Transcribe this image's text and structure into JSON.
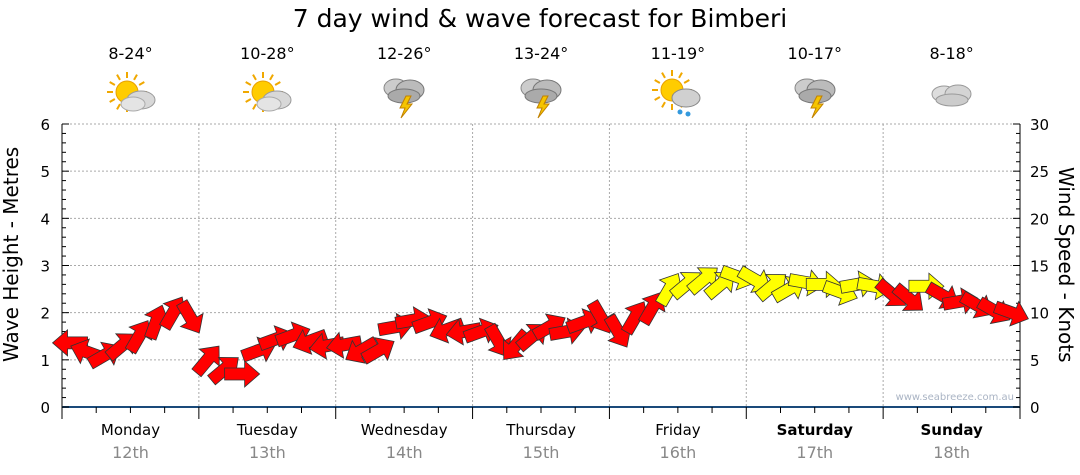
{
  "title": "7 day wind & wave forecast for Bimberi",
  "days": [
    {
      "name": "Monday",
      "date": "12th",
      "temp": "8-24°",
      "icon": "sun-cloud",
      "bold": false
    },
    {
      "name": "Tuesday",
      "date": "13th",
      "temp": "10-28°",
      "icon": "sun-cloud",
      "bold": false
    },
    {
      "name": "Wednesday",
      "date": "14th",
      "temp": "12-26°",
      "icon": "storm",
      "bold": false
    },
    {
      "name": "Thursday",
      "date": "15th",
      "temp": "13-24°",
      "icon": "storm",
      "bold": false
    },
    {
      "name": "Friday",
      "date": "16th",
      "temp": "11-19°",
      "icon": "sun-cloud-rain",
      "bold": false
    },
    {
      "name": "Saturday",
      "date": "17th",
      "temp": "10-17°",
      "icon": "storm",
      "bold": true
    },
    {
      "name": "Sunday",
      "date": "18th",
      "temp": "8-18°",
      "icon": "cloud",
      "bold": true
    }
  ],
  "watermark": "www.seabreeze.com.au",
  "colors": {
    "low": "#ff0000",
    "high": "#ffff00"
  },
  "chart_data": {
    "type": "scatter",
    "title": "7 day wind & wave forecast for Bimberi",
    "ylabel": "Wave Height - Metres",
    "y2label": "Wind Speed - Knots",
    "ylim": [
      0,
      6
    ],
    "y2lim": [
      0,
      30
    ],
    "yticks": [
      "0",
      "1",
      "2",
      "3",
      "4",
      "5",
      "6"
    ],
    "y2ticks": [
      "0",
      "5",
      "10",
      "15",
      "20",
      "25",
      "30"
    ],
    "grid": true,
    "x_hours_step": 3,
    "wind": [
      [
        6.8,
        180,
        "r"
      ],
      [
        5.8,
        200,
        "r"
      ],
      [
        5.5,
        -30,
        "r"
      ],
      [
        6.5,
        -40,
        "r"
      ],
      [
        7.5,
        -60,
        "r"
      ],
      [
        9.0,
        -70,
        "r"
      ],
      [
        10.0,
        -60,
        "r"
      ],
      [
        9.5,
        60,
        "r"
      ],
      [
        5.0,
        -50,
        "r"
      ],
      [
        4.0,
        -40,
        "r"
      ],
      [
        3.5,
        0,
        "r"
      ],
      [
        6.0,
        -20,
        "r"
      ],
      [
        7.2,
        -20,
        "r"
      ],
      [
        7.6,
        -20,
        "r"
      ],
      [
        7.0,
        160,
        "r"
      ],
      [
        6.5,
        170,
        "r"
      ],
      [
        6.6,
        170,
        "r"
      ],
      [
        6.0,
        150,
        "r"
      ],
      [
        6.0,
        -30,
        "r"
      ],
      [
        8.5,
        -10,
        "r"
      ],
      [
        9.2,
        -10,
        "r"
      ],
      [
        9.0,
        -20,
        "r"
      ],
      [
        8.2,
        160,
        "r"
      ],
      [
        8.0,
        170,
        "r"
      ],
      [
        8.0,
        -20,
        "r"
      ],
      [
        7.0,
        60,
        "r"
      ],
      [
        6.5,
        130,
        "r"
      ],
      [
        7.5,
        -40,
        "r"
      ],
      [
        8.5,
        -30,
        "r"
      ],
      [
        8.0,
        -10,
        "r"
      ],
      [
        9.0,
        -20,
        "r"
      ],
      [
        9.5,
        60,
        "r"
      ],
      [
        8.0,
        60,
        "r"
      ],
      [
        9.5,
        -60,
        "r"
      ],
      [
        10.5,
        -60,
        "r"
      ],
      [
        12.5,
        -60,
        "y"
      ],
      [
        13.0,
        -40,
        "y"
      ],
      [
        13.5,
        -40,
        "y"
      ],
      [
        13.0,
        -40,
        "y"
      ],
      [
        13.8,
        20,
        "y"
      ],
      [
        13.5,
        30,
        "y"
      ],
      [
        12.8,
        -40,
        "y"
      ],
      [
        12.5,
        -30,
        "y"
      ],
      [
        13.2,
        10,
        "y"
      ],
      [
        13.0,
        0,
        "y"
      ],
      [
        12.2,
        20,
        "y"
      ],
      [
        13.0,
        -10,
        "y"
      ],
      [
        12.8,
        10,
        "y"
      ],
      [
        12.0,
        40,
        "r"
      ],
      [
        11.5,
        40,
        "r"
      ],
      [
        12.8,
        0,
        "y"
      ],
      [
        11.8,
        30,
        "r"
      ],
      [
        11.2,
        -10,
        "r"
      ],
      [
        10.8,
        30,
        "r"
      ],
      [
        10.2,
        30,
        "r"
      ],
      [
        10.0,
        20,
        "r"
      ]
    ]
  }
}
